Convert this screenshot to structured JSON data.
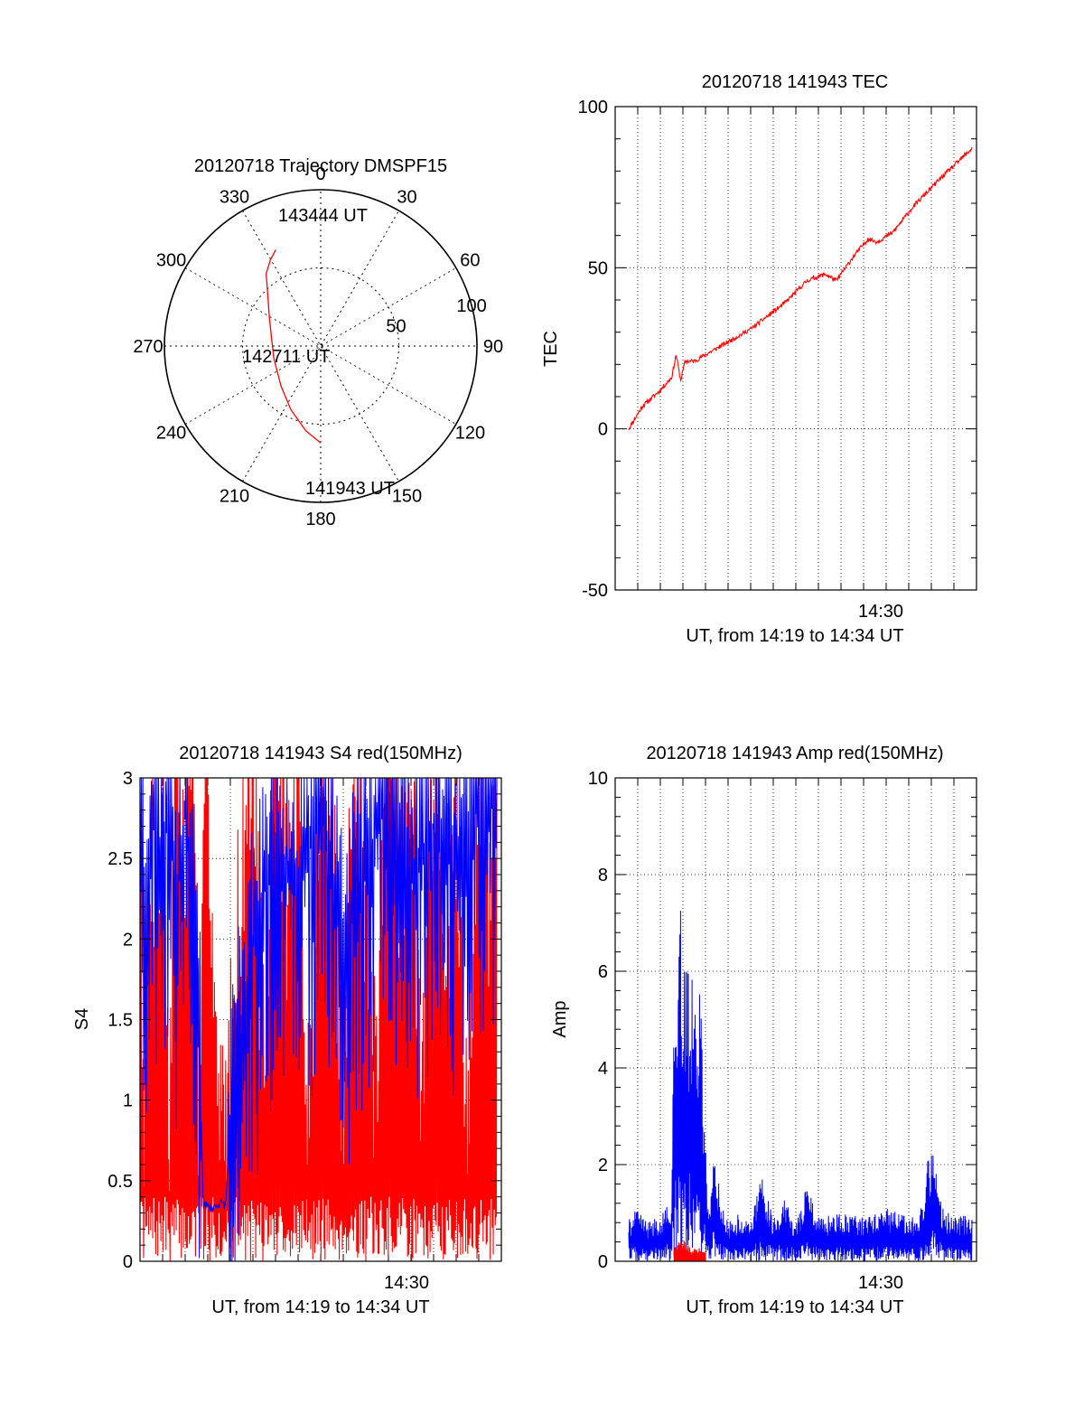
{
  "chart_data": [
    {
      "id": "trajectory",
      "type": "polar",
      "title": "20120718 Trajectory DMSPF15",
      "azimuth_labels": [
        "0",
        "30",
        "60",
        "90",
        "120",
        "150",
        "180",
        "210",
        "240",
        "270",
        "300",
        "330"
      ],
      "radial_labels": [
        "50",
        "100"
      ],
      "radial_max": 100,
      "track_color": "#ff0000",
      "track": [
        {
          "az": 180,
          "r": 62
        },
        {
          "az": 190,
          "r": 55
        },
        {
          "az": 205,
          "r": 45
        },
        {
          "az": 225,
          "r": 36
        },
        {
          "az": 255,
          "r": 31
        },
        {
          "az": 280,
          "r": 32
        },
        {
          "az": 300,
          "r": 38
        },
        {
          "az": 315,
          "r": 48
        },
        {
          "az": 323,
          "r": 58
        },
        {
          "az": 330,
          "r": 64
        },
        {
          "az": 335,
          "r": 68
        }
      ],
      "annotations": [
        "143444 UT",
        "142711 UT",
        "141943 UT"
      ]
    },
    {
      "id": "tec",
      "type": "line",
      "title": "20120718 141943 TEC",
      "ylabel": "TEC",
      "xlabel": "UT, from 14:19 to 14:34 UT",
      "xtick_label": "14:30",
      "ylim": [
        -50,
        100
      ],
      "yticks": [
        "-50",
        "0",
        "50",
        "100"
      ],
      "xlim_min": [
        19.6,
        34.8
      ],
      "color": "#ff0000",
      "x": [
        19.6,
        20.2,
        21.0,
        21.5,
        21.7,
        21.9,
        22.1,
        22.5,
        23.5,
        25.0,
        26.5,
        27.5,
        28.3,
        28.8,
        29.5,
        30.2,
        30.6,
        31.3,
        32.2,
        33.3,
        34.8
      ],
      "y": [
        0,
        7,
        12,
        16,
        23,
        15,
        21,
        21,
        25,
        31,
        39,
        46,
        48,
        46,
        53,
        59,
        58,
        61,
        69,
        77,
        87
      ]
    },
    {
      "id": "s4",
      "type": "line",
      "title": "20120718 141943 S4 red(150MHz)",
      "ylabel": "S4",
      "xlabel": "UT, from 14:19 to 14:34 UT",
      "xtick_label": "14:30",
      "ylim": [
        0,
        3
      ],
      "yticks": [
        "0",
        "0.5",
        "1",
        "1.5",
        "2",
        "2.5",
        "3"
      ],
      "xlim_min": [
        19.0,
        34.8
      ],
      "series": [
        {
          "color": "#0000ff",
          "x": [
            19.0,
            19.2,
            19.5,
            20.0,
            20.3,
            20.6,
            21.0,
            21.5,
            21.8,
            22.2,
            22.5,
            22.8,
            23.0,
            23.3,
            24.0,
            25.0,
            26.0,
            27.0,
            28.0,
            29.0,
            30.0,
            31.0,
            32.0,
            33.0,
            34.0,
            34.8
          ],
          "y": [
            3.0,
            2.2,
            2.8,
            2.5,
            3.0,
            2.3,
            2.8,
            2.2,
            0.35,
            0.33,
            0.36,
            0.35,
            0.9,
            1.3,
            2.0,
            2.6,
            2.3,
            2.8,
            2.1,
            2.5,
            2.9,
            2.4,
            2.7,
            2.6,
            2.9,
            2.8
          ]
        },
        {
          "color": "#ff0000",
          "x": [
            19.0,
            19.2,
            19.5,
            19.8,
            20.0,
            20.3,
            20.6,
            21.0,
            21.3,
            21.6,
            22.0,
            22.5,
            23.0,
            23.5,
            24.0,
            24.5,
            25.0,
            25.5,
            26.0,
            26.5,
            27.0,
            27.5,
            28.0,
            28.5,
            29.0,
            29.5,
            30.0,
            30.5,
            31.0,
            31.5,
            32.0,
            32.5,
            33.0,
            33.5,
            34.0,
            34.5,
            34.8
          ],
          "y": [
            1.9,
            0.2,
            2.0,
            1.5,
            2.5,
            0.1,
            2.9,
            1.5,
            3.0,
            0.2,
            2.5,
            0.0,
            0.5,
            1.8,
            2.6,
            0.3,
            2.9,
            1.6,
            2.1,
            0.2,
            2.4,
            2.0,
            0.1,
            2.8,
            1.4,
            0.2,
            2.9,
            1.7,
            2.2,
            0.4,
            2.6,
            1.3,
            2.0,
            0.3,
            2.7,
            1.5,
            2.4
          ]
        }
      ]
    },
    {
      "id": "amp",
      "type": "line",
      "title": "20120718 141943 Amp red(150MHz)",
      "ylabel": "Amp",
      "xlabel": "UT, from 14:19 to 14:34 UT",
      "xtick_label": "14:30",
      "ylim": [
        0,
        10
      ],
      "yticks": [
        "0",
        "2",
        "4",
        "6",
        "8",
        "10"
      ],
      "xlim_min": [
        19.6,
        34.8
      ],
      "series": [
        {
          "color": "#0000ff",
          "x": [
            19.6,
            20.0,
            20.5,
            21.0,
            21.5,
            21.6,
            21.8,
            22.0,
            22.2,
            22.5,
            22.8,
            23.1,
            23.4,
            23.7,
            24.0,
            24.5,
            25.0,
            25.5,
            26.0,
            26.5,
            27.0,
            27.5,
            28.0,
            29.0,
            30.0,
            31.0,
            32.0,
            32.5,
            33.0,
            33.5,
            34.0,
            34.8
          ],
          "y": [
            0.9,
            1.1,
            0.8,
            1.0,
            1.3,
            5.0,
            8.2,
            6.4,
            6.0,
            6.5,
            5.4,
            1.2,
            2.3,
            1.3,
            0.8,
            1.0,
            0.8,
            1.9,
            0.9,
            1.3,
            0.8,
            1.6,
            0.9,
            1.0,
            0.9,
            1.1,
            0.9,
            1.0,
            2.6,
            1.1,
            0.9,
            1.0
          ]
        },
        {
          "color": "#ff0000",
          "x": [
            21.6,
            22.0,
            22.4,
            22.8,
            23.0
          ],
          "y": [
            0.3,
            0.4,
            0.2,
            0.3,
            0.25
          ]
        }
      ]
    }
  ]
}
